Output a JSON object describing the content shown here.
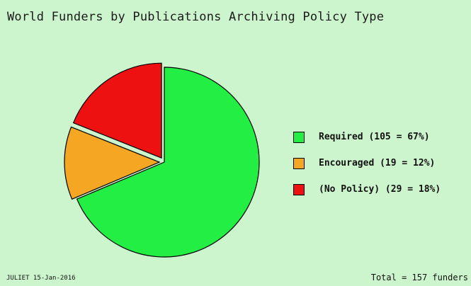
{
  "colors": {
    "background": "#cdf5cd",
    "required": "#22ee44",
    "encouraged": "#f5a623",
    "no_policy": "#ee1111"
  },
  "chart_data": {
    "type": "pie",
    "title": "World Funders by Publications Archiving Policy Type",
    "slices": [
      {
        "label": "Required (105 = 67%)",
        "value": 105,
        "percent": 67,
        "color": "#22ee44",
        "exploded": false
      },
      {
        "label": "Encouraged (19 = 12%)",
        "value": 19,
        "percent": 12,
        "color": "#f5a623",
        "exploded": true
      },
      {
        "label": "(No Policy) (29 = 18%)",
        "value": 29,
        "percent": 18,
        "color": "#ee1111",
        "exploded": true
      }
    ],
    "legend_position": "right",
    "footer_left": "JULIET 15-Jan-2016",
    "footer_right": "Total = 157 funders"
  }
}
